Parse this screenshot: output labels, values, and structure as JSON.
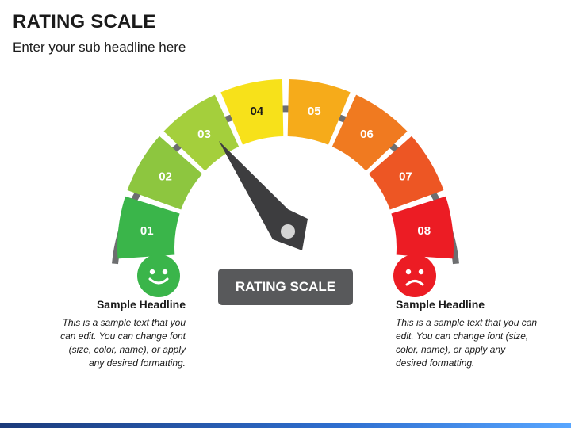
{
  "header": {
    "title": "RATING SCALE",
    "subtitle": "Enter your sub headline here"
  },
  "gauge": {
    "segments": [
      {
        "label": "01",
        "color": "#3ab54a"
      },
      {
        "label": "02",
        "color": "#8dc63f"
      },
      {
        "label": "03",
        "color": "#a4cf3c"
      },
      {
        "label": "04",
        "color": "#f7e11a"
      },
      {
        "label": "05",
        "color": "#f6ab1a"
      },
      {
        "label": "06",
        "color": "#f07a20"
      },
      {
        "label": "07",
        "color": "#ed5624"
      },
      {
        "label": "08",
        "color": "#ec1c24"
      }
    ],
    "arc_color": "#6d6e70",
    "needle_color": "#3d3d3f",
    "center_label": "RATING SCALE"
  },
  "left_panel": {
    "icon": "happy-face-icon",
    "icon_color": "#3ab54a",
    "headline": "Sample Headline",
    "body": "This is a sample text that you can edit. You can change font (size, color, name), or apply any desired formatting."
  },
  "right_panel": {
    "icon": "sad-face-icon",
    "icon_color": "#ec1c24",
    "headline": "Sample Headline",
    "body": "This is a sample text that you can edit. You can change font (size, color, name), or apply any desired formatting."
  }
}
